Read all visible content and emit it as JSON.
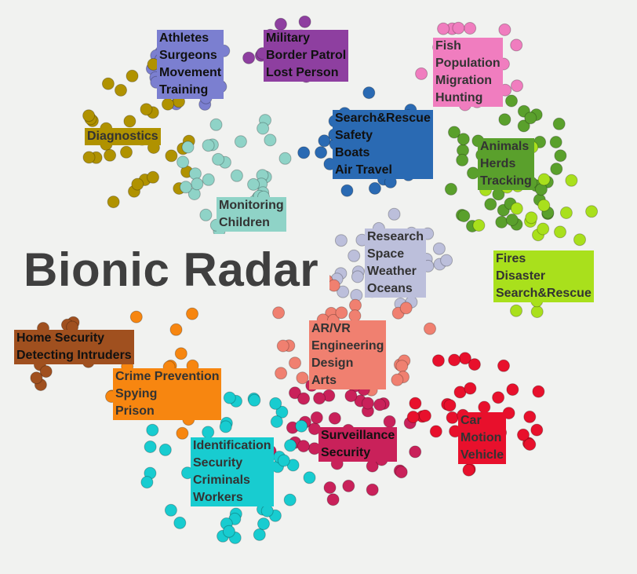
{
  "title": "Bionic Radar",
  "clusters": [
    {
      "id": "sports",
      "color": "#7b7fd0",
      "text_color": "#111111",
      "lines": [
        "Athletes",
        "Surgeons",
        "Movement",
        "Training"
      ]
    },
    {
      "id": "military",
      "color": "#8e3fa0",
      "text_color": "#111111",
      "lines": [
        "Military",
        "Border Patrol",
        "Lost Person"
      ]
    },
    {
      "id": "fish",
      "color": "#f07dbf",
      "text_color": "#333333",
      "lines": [
        "Fish",
        "Population",
        "Migration",
        "Hunting"
      ]
    },
    {
      "id": "diagnostics",
      "color": "#b09200",
      "text_color": "#333333",
      "lines": [
        "Diagnostics"
      ]
    },
    {
      "id": "search",
      "color": "#2a6ab3",
      "text_color": "#111111",
      "lines": [
        "Search&Rescue",
        "Safety",
        "Boats",
        "Air Travel"
      ]
    },
    {
      "id": "animals",
      "color": "#5aa02c",
      "text_color": "#333333",
      "lines": [
        "Animals",
        "Herds",
        "Tracking"
      ]
    },
    {
      "id": "monitoring",
      "color": "#8fd3c7",
      "text_color": "#333333",
      "lines": [
        "Monitoring",
        "Children"
      ]
    },
    {
      "id": "research",
      "color": "#bcbfdb",
      "text_color": "#333333",
      "lines": [
        "Research",
        "Space",
        "Weather",
        "Oceans"
      ]
    },
    {
      "id": "fires",
      "color": "#a9e01c",
      "text_color": "#333333",
      "lines": [
        "Fires",
        "Disaster",
        "Search&Rescue"
      ]
    },
    {
      "id": "home",
      "color": "#a0501f",
      "text_color": "#111111",
      "lines": [
        "Home Security",
        "Detecting Intruders"
      ]
    },
    {
      "id": "arvr",
      "color": "#f08070",
      "text_color": "#333333",
      "lines": [
        "AR/VR",
        "Engineering",
        "Design",
        "Arts"
      ]
    },
    {
      "id": "crime",
      "color": "#f78610",
      "text_color": "#333333",
      "lines": [
        "Crime Prevention",
        "Spying",
        "Prison"
      ]
    },
    {
      "id": "surveillance",
      "color": "#c9215a",
      "text_color": "#111111",
      "lines": [
        "Surveillance",
        "Security"
      ]
    },
    {
      "id": "car",
      "color": "#e8102c",
      "text_color": "#333333",
      "lines": [
        "Car",
        "Motion",
        "Vehicle"
      ]
    },
    {
      "id": "identification",
      "color": "#18ccd0",
      "text_color": "#333333",
      "lines": [
        "Identification",
        "Security",
        "Criminals",
        "Workers"
      ]
    }
  ]
}
